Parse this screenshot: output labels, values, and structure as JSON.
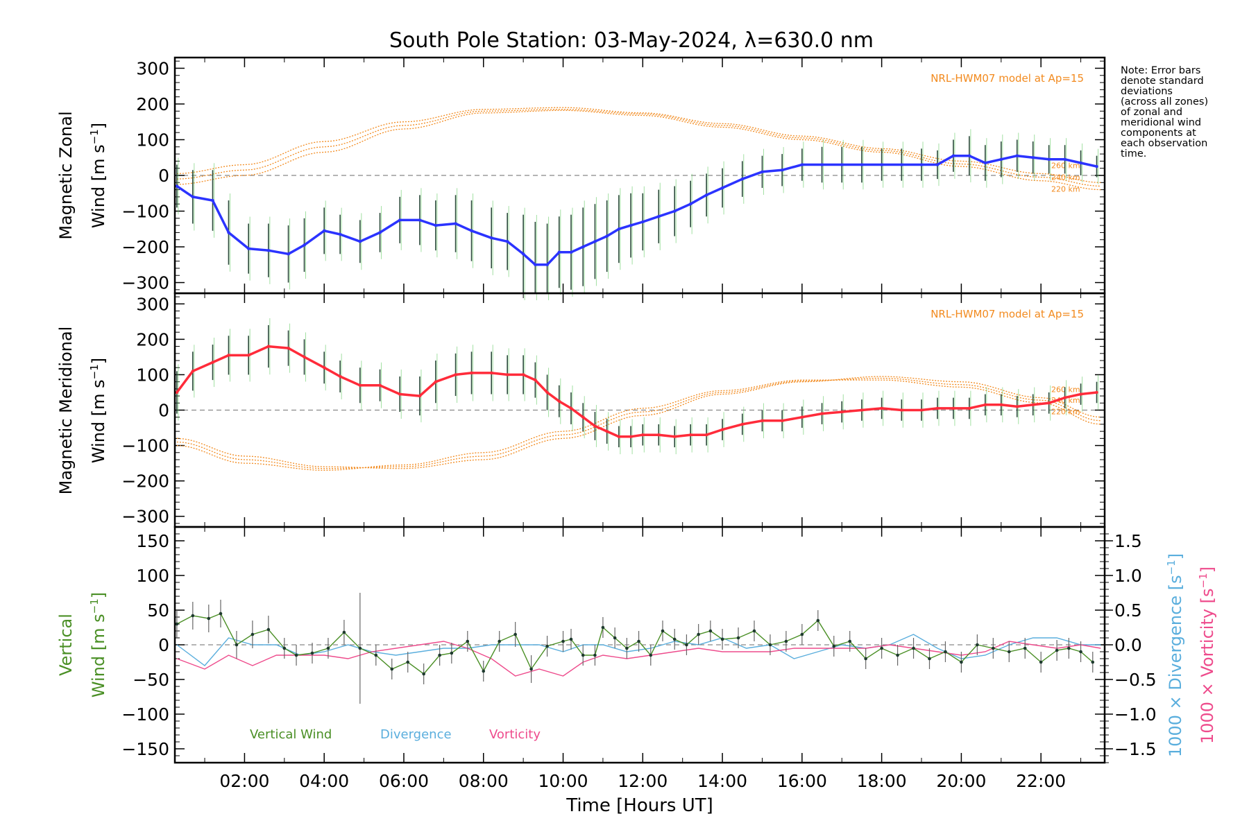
{
  "title": "South Pole Station: 03-May-2024, λ=630.0 nm",
  "note": [
    "Note: Error bars",
    "denote standard",
    "deviations",
    "(across all zones)",
    "of zonal and",
    "meridional wind",
    "components at",
    "each observation",
    "time."
  ],
  "colors": {
    "zonal": "#2b33ff",
    "meridional": "#ff2b3a",
    "model": "#f28a1e",
    "vertical": "#4a8f25",
    "divergence": "#5aaedd",
    "vorticity": "#ee4b8c"
  },
  "chart_data": [
    {
      "type": "line",
      "panel": "zonal",
      "ylabel_line1": "Magnetic Zonal",
      "ylabel_line2_prefix": "Wind [m s",
      "ylabel_line2_sup": "-1",
      "ylabel_line2_suffix": "]",
      "ylim": [
        -330,
        330
      ],
      "yticks": [
        -300,
        -200,
        -100,
        0,
        100,
        200,
        300
      ],
      "model_label": "NRL-HWM07 model at Ap=15",
      "model_alt_labels": [
        "260 km",
        "240 km",
        "220 km"
      ],
      "series": [
        {
          "name": "Magnetic Zonal Wind",
          "x": [
            0.3,
            0.7,
            1.2,
            1.6,
            2.1,
            2.6,
            3.1,
            3.5,
            4.0,
            4.4,
            4.9,
            5.4,
            5.9,
            6.4,
            6.8,
            7.3,
            7.7,
            8.2,
            8.6,
            9.0,
            9.3,
            9.6,
            9.9,
            10.2,
            10.5,
            10.8,
            11.1,
            11.4,
            11.7,
            12.0,
            12.4,
            12.8,
            13.2,
            13.6,
            14.0,
            14.5,
            15.0,
            15.5,
            16.0,
            16.5,
            17.0,
            17.5,
            18.0,
            18.5,
            19.0,
            19.4,
            19.8,
            20.2,
            20.6,
            21.0,
            21.4,
            21.8,
            22.2,
            22.6,
            23.0,
            23.4
          ],
          "values": [
            -30,
            -60,
            -70,
            -160,
            -205,
            -210,
            -220,
            -195,
            -155,
            -165,
            -185,
            -160,
            -125,
            -125,
            -140,
            -135,
            -155,
            -175,
            -185,
            -220,
            -250,
            -250,
            -215,
            -215,
            -200,
            -185,
            -170,
            -150,
            -140,
            -130,
            -115,
            -100,
            -80,
            -55,
            -35,
            -10,
            10,
            15,
            30,
            30,
            30,
            30,
            30,
            30,
            30,
            30,
            55,
            55,
            35,
            45,
            55,
            50,
            45,
            45,
            35,
            25
          ]
        }
      ],
      "error_bar_half_width": [
        60,
        75,
        85,
        90,
        70,
        75,
        80,
        75,
        65,
        55,
        60,
        55,
        65,
        70,
        70,
        80,
        85,
        85,
        80,
        110,
        120,
        115,
        100,
        105,
        110,
        105,
        100,
        95,
        90,
        80,
        75,
        70,
        65,
        60,
        55,
        50,
        45,
        45,
        45,
        50,
        50,
        50,
        45,
        45,
        45,
        40,
        45,
        55,
        50,
        50,
        45,
        45,
        40,
        40,
        35,
        30
      ],
      "model": {
        "x": [
          0.3,
          2,
          4,
          6,
          8,
          10,
          12,
          14,
          16,
          18,
          20,
          22,
          23.5
        ],
        "top": [
          5,
          30,
          95,
          150,
          185,
          190,
          175,
          145,
          110,
          75,
          40,
          5,
          -20
        ],
        "mid": [
          -10,
          15,
          80,
          140,
          180,
          185,
          172,
          140,
          105,
          70,
          32,
          -5,
          -30
        ],
        "bottom": [
          -25,
          0,
          65,
          130,
          175,
          182,
          168,
          135,
          100,
          65,
          25,
          -15,
          -40
        ]
      }
    },
    {
      "type": "line",
      "panel": "meridional",
      "ylabel_line1": "Magnetic Meridional",
      "ylabel_line2_prefix": "Wind [m s",
      "ylabel_line2_sup": "-1",
      "ylabel_line2_suffix": "]",
      "ylim": [
        -330,
        330
      ],
      "yticks": [
        -300,
        -200,
        -100,
        0,
        100,
        200,
        300
      ],
      "model_label": "NRL-HWM07 model at Ap=15",
      "model_alt_labels": [
        "260 km",
        "240 km",
        "220 km"
      ],
      "series": [
        {
          "name": "Magnetic Meridional Wind",
          "x": [
            0.3,
            0.7,
            1.2,
            1.6,
            2.1,
            2.6,
            3.1,
            3.5,
            4.0,
            4.4,
            4.9,
            5.4,
            5.9,
            6.4,
            6.8,
            7.3,
            7.7,
            8.2,
            8.6,
            9.0,
            9.3,
            9.6,
            9.9,
            10.2,
            10.5,
            10.8,
            11.1,
            11.4,
            11.7,
            12.0,
            12.4,
            12.8,
            13.2,
            13.6,
            14.0,
            14.5,
            15.0,
            15.5,
            16.0,
            16.5,
            17.0,
            17.5,
            18.0,
            18.5,
            19.0,
            19.4,
            19.8,
            20.2,
            20.6,
            21.0,
            21.4,
            21.8,
            22.2,
            22.6,
            23.0,
            23.4
          ],
          "values": [
            50,
            110,
            135,
            155,
            155,
            180,
            175,
            150,
            120,
            95,
            70,
            70,
            45,
            40,
            80,
            100,
            105,
            105,
            100,
            100,
            85,
            50,
            25,
            5,
            -20,
            -45,
            -60,
            -75,
            -75,
            -70,
            -70,
            -75,
            -70,
            -70,
            -55,
            -40,
            -30,
            -30,
            -20,
            -10,
            -5,
            0,
            5,
            0,
            0,
            5,
            5,
            5,
            15,
            15,
            10,
            15,
            20,
            35,
            45,
            50
          ]
        }
      ],
      "error_bar_half_width": [
        60,
        55,
        50,
        55,
        55,
        60,
        50,
        50,
        45,
        45,
        50,
        45,
        50,
        55,
        60,
        60,
        60,
        60,
        55,
        55,
        50,
        50,
        45,
        45,
        40,
        40,
        35,
        30,
        30,
        30,
        30,
        30,
        30,
        30,
        30,
        30,
        30,
        30,
        30,
        30,
        30,
        30,
        30,
        30,
        30,
        30,
        30,
        30,
        30,
        30,
        30,
        30,
        30,
        30,
        30,
        30
      ],
      "model": {
        "x": [
          0.3,
          2,
          4,
          6,
          8,
          10,
          12,
          14,
          16,
          18,
          20,
          22,
          23.5
        ],
        "top": [
          -80,
          -130,
          -160,
          -165,
          -140,
          -80,
          -15,
          45,
          80,
          95,
          80,
          35,
          -20
        ],
        "mid": [
          -90,
          -140,
          -165,
          -160,
          -130,
          -70,
          -5,
          50,
          82,
          90,
          72,
          28,
          -30
        ],
        "bottom": [
          -100,
          -150,
          -170,
          -155,
          -120,
          -60,
          5,
          55,
          85,
          85,
          65,
          20,
          -40
        ]
      }
    },
    {
      "type": "line",
      "panel": "vertical",
      "ylabel_left_line1": "Vertical",
      "ylabel_left_line2_prefix": "Wind ",
      "ylabel_left_line2_bracket": "[m s",
      "ylabel_left_line2_sup": "-1",
      "ylabel_left_line2_suffix": "]",
      "ylabel_right1_prefix": "1000 × Divergence ",
      "ylabel_right1_bracket": "[s",
      "ylabel_right1_sup": "-1",
      "ylabel_right1_suffix": "]",
      "ylabel_right2_prefix": "1000 × Vorticity ",
      "ylabel_right2_bracket": "[s",
      "ylabel_right2_sup": "-1",
      "ylabel_right2_suffix": "]",
      "ylim": [
        -170,
        170
      ],
      "yticks": [
        -150,
        -100,
        -50,
        0,
        50,
        100,
        150
      ],
      "y2lim": [
        -1.7,
        1.7
      ],
      "y2ticks": [
        -1.5,
        -1.0,
        -0.5,
        0.0,
        0.5,
        1.0,
        1.5
      ],
      "y2tick_labels": [
        "-1.5",
        "-1.0",
        "-0.5",
        "0.0",
        "0.5",
        "1.0",
        "1.5"
      ],
      "xlabel": "Time [Hours UT]",
      "xlim": [
        0.25,
        23.6
      ],
      "xticks": [
        2,
        4,
        6,
        8,
        10,
        12,
        14,
        16,
        18,
        20,
        22
      ],
      "xtick_labels": [
        "02:00",
        "04:00",
        "06:00",
        "08:00",
        "10:00",
        "12:00",
        "14:00",
        "16:00",
        "18:00",
        "20:00",
        "22:00"
      ],
      "legend": [
        "Vertical Wind",
        "Divergence",
        "Vorticity"
      ],
      "series": [
        {
          "name": "Vertical Wind",
          "x": [
            0.3,
            0.7,
            1.1,
            1.4,
            1.8,
            2.2,
            2.6,
            3.0,
            3.3,
            3.7,
            4.1,
            4.5,
            4.9,
            5.3,
            5.7,
            6.1,
            6.5,
            6.9,
            7.2,
            7.6,
            8.0,
            8.4,
            8.8,
            9.2,
            9.6,
            10.0,
            10.2,
            10.5,
            10.8,
            11.0,
            11.3,
            11.6,
            11.9,
            12.2,
            12.5,
            12.8,
            13.1,
            13.4,
            13.7,
            14.0,
            14.4,
            14.8,
            15.2,
            15.6,
            16.0,
            16.4,
            16.8,
            17.2,
            17.6,
            18.0,
            18.4,
            18.8,
            19.2,
            19.6,
            20.0,
            20.4,
            20.8,
            21.2,
            21.6,
            22.0,
            22.4,
            22.7,
            23.0,
            23.3
          ],
          "values": [
            30,
            42,
            38,
            45,
            0,
            15,
            22,
            -5,
            -15,
            -12,
            -5,
            18,
            -5,
            -15,
            -35,
            -25,
            -42,
            -15,
            -12,
            5,
            -38,
            5,
            15,
            -35,
            -2,
            5,
            8,
            -15,
            -15,
            25,
            10,
            -5,
            5,
            -15,
            20,
            8,
            0,
            15,
            20,
            8,
            10,
            20,
            0,
            5,
            15,
            35,
            -2,
            5,
            -20,
            -5,
            -15,
            -5,
            -20,
            -10,
            -25,
            0,
            -5,
            -10,
            -5,
            -25,
            -8,
            -5,
            -10,
            -25
          ],
          "error_bar_half_width": [
            20,
            20,
            20,
            20,
            20,
            20,
            20,
            15,
            15,
            15,
            15,
            18,
            80,
            15,
            15,
            15,
            15,
            15,
            15,
            15,
            15,
            15,
            18,
            20,
            15,
            15,
            15,
            15,
            15,
            15,
            15,
            15,
            15,
            15,
            15,
            15,
            15,
            15,
            15,
            15,
            15,
            15,
            15,
            15,
            15,
            15,
            15,
            15,
            15,
            15,
            15,
            15,
            15,
            15,
            15,
            15,
            15,
            15,
            15,
            15,
            15,
            15,
            15,
            15
          ]
        },
        {
          "name": "Divergence",
          "axis": "right",
          "x": [
            0.3,
            1.0,
            1.6,
            2.2,
            2.8,
            3.4,
            4.0,
            4.6,
            5.2,
            5.8,
            6.4,
            7.0,
            7.6,
            8.2,
            8.8,
            9.4,
            10.0,
            10.5,
            11.0,
            11.6,
            12.2,
            12.8,
            13.4,
            14.0,
            14.6,
            15.2,
            15.8,
            16.4,
            17.0,
            17.6,
            18.2,
            18.8,
            19.4,
            20.0,
            20.6,
            21.2,
            21.8,
            22.4,
            23.0,
            23.5
          ],
          "values": [
            0.0,
            -0.3,
            0.1,
            0.0,
            0.0,
            -0.15,
            -0.1,
            0.0,
            -0.1,
            -0.15,
            -0.1,
            -0.05,
            -0.05,
            0.0,
            0.0,
            0.0,
            -0.1,
            0.0,
            0.0,
            -0.1,
            -0.05,
            0.05,
            0.0,
            0.1,
            -0.05,
            0.0,
            -0.2,
            -0.1,
            0.0,
            -0.05,
            0.0,
            0.15,
            -0.05,
            -0.2,
            -0.15,
            0.0,
            0.1,
            0.1,
            0.0,
            0.0
          ]
        },
        {
          "name": "Vorticity",
          "axis": "right",
          "x": [
            0.3,
            1.0,
            1.6,
            2.2,
            2.8,
            3.4,
            4.0,
            4.6,
            5.2,
            5.8,
            6.4,
            7.0,
            7.6,
            8.2,
            8.8,
            9.4,
            10.0,
            10.5,
            11.0,
            11.6,
            12.2,
            12.8,
            13.4,
            14.0,
            14.6,
            15.2,
            15.8,
            16.4,
            17.0,
            17.6,
            18.2,
            18.8,
            19.4,
            20.0,
            20.6,
            21.2,
            21.8,
            22.4,
            23.0,
            23.5
          ],
          "values": [
            -0.2,
            -0.35,
            -0.15,
            -0.3,
            -0.15,
            -0.15,
            -0.15,
            -0.2,
            -0.1,
            -0.05,
            0.0,
            0.05,
            -0.05,
            -0.2,
            -0.45,
            -0.35,
            -0.45,
            -0.25,
            -0.15,
            -0.2,
            -0.15,
            -0.1,
            -0.05,
            -0.1,
            -0.1,
            -0.1,
            -0.05,
            -0.05,
            -0.05,
            -0.05,
            0.0,
            -0.05,
            -0.1,
            -0.15,
            -0.1,
            0.05,
            0.0,
            -0.05,
            0.0,
            -0.05
          ]
        }
      ]
    }
  ]
}
